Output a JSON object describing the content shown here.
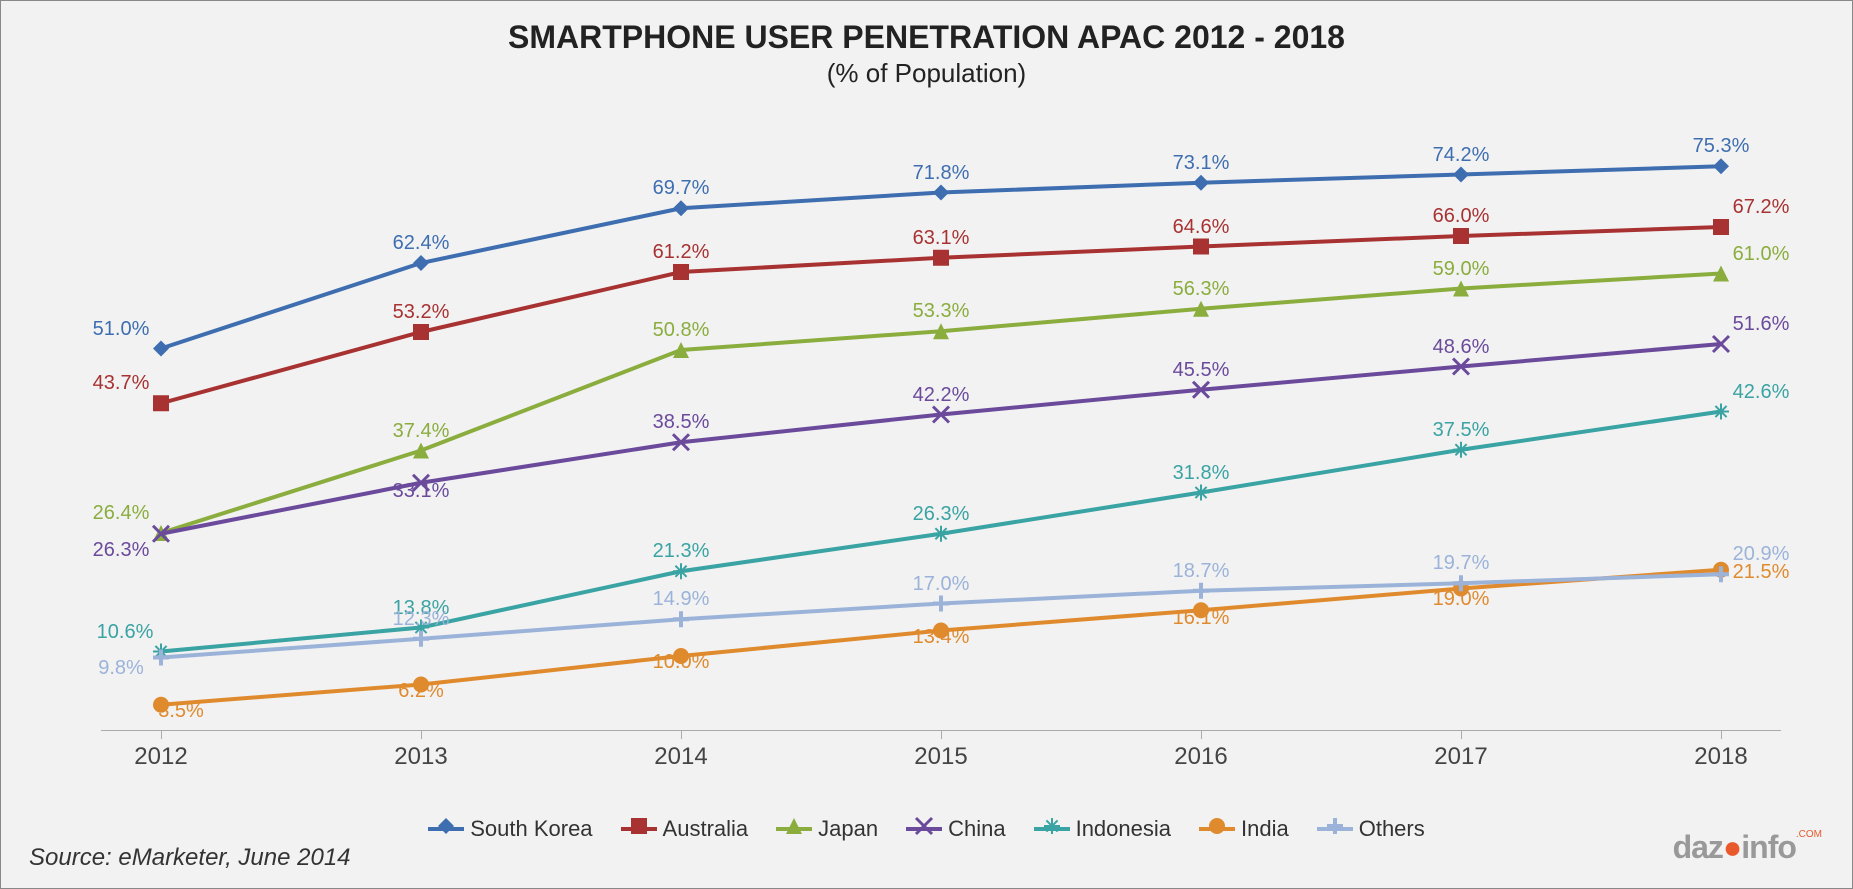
{
  "chart": {
    "title": "SMARTPHONE USER PENETRATION APAC 2012 - 2018",
    "subtitle": "(% of Population)",
    "title_fontsize": 32,
    "subtitle_fontsize": 26,
    "background_color": "#f2f2f2",
    "border_color": "#888888",
    "source": "Source: eMarketer, June 2014",
    "watermark": "dazoinfo",
    "type": "line",
    "years": [
      "2012",
      "2013",
      "2014",
      "2015",
      "2016",
      "2017",
      "2018"
    ],
    "ylim": [
      0,
      80
    ],
    "line_width": 4,
    "marker_size": 8,
    "series": [
      {
        "name": "South Korea",
        "color": "#3e6eb0",
        "marker": "diamond",
        "values": [
          51.0,
          62.4,
          69.7,
          71.8,
          73.1,
          74.2,
          75.3
        ],
        "labels": [
          "51.0%",
          "62.4%",
          "69.7%",
          "71.8%",
          "73.1%",
          "74.2%",
          "75.3%"
        ],
        "label_dx": [
          -40,
          0,
          0,
          0,
          0,
          0,
          0
        ],
        "label_dy": [
          -8,
          -8,
          -8,
          -8,
          -8,
          -8,
          -8
        ]
      },
      {
        "name": "Australia",
        "color": "#a83232",
        "marker": "square",
        "values": [
          43.7,
          53.2,
          61.2,
          63.1,
          64.6,
          66.0,
          67.2
        ],
        "labels": [
          "43.7%",
          "53.2%",
          "61.2%",
          "63.1%",
          "64.6%",
          "66.0%",
          "67.2%"
        ],
        "label_dx": [
          -40,
          0,
          0,
          0,
          0,
          0,
          40
        ],
        "label_dy": [
          -8,
          -8,
          -8,
          -8,
          -8,
          -8,
          -8
        ]
      },
      {
        "name": "Japan",
        "color": "#8aad3e",
        "marker": "triangle",
        "values": [
          26.4,
          37.4,
          50.8,
          53.3,
          56.3,
          59.0,
          61.0
        ],
        "labels": [
          "26.4%",
          "37.4%",
          "50.8%",
          "53.3%",
          "56.3%",
          "59.0%",
          "61.0%"
        ],
        "label_dx": [
          -40,
          0,
          0,
          0,
          0,
          0,
          40
        ],
        "label_dy": [
          -8,
          -8,
          -8,
          -8,
          -8,
          -8,
          -8
        ]
      },
      {
        "name": "China",
        "color": "#6b4a9c",
        "marker": "x",
        "values": [
          26.3,
          33.1,
          38.5,
          42.2,
          45.5,
          48.6,
          51.6
        ],
        "labels": [
          "26.3%",
          "33.1%",
          "38.5%",
          "42.2%",
          "45.5%",
          "48.6%",
          "51.6%"
        ],
        "label_dx": [
          -40,
          0,
          0,
          0,
          0,
          0,
          40
        ],
        "label_dy": [
          28,
          20,
          -8,
          -8,
          -8,
          -8,
          -8
        ]
      },
      {
        "name": "Indonesia",
        "color": "#3aa3a3",
        "marker": "star",
        "values": [
          10.6,
          13.8,
          21.3,
          26.3,
          31.8,
          37.5,
          42.6
        ],
        "labels": [
          "10.6%",
          "13.8%",
          "21.3%",
          "26.3%",
          "31.8%",
          "37.5%",
          "42.6%"
        ],
        "label_dx": [
          -36,
          0,
          0,
          0,
          0,
          0,
          40
        ],
        "label_dy": [
          -8,
          -8,
          -8,
          -8,
          -8,
          -8,
          -8
        ]
      },
      {
        "name": "India",
        "color": "#e08a2e",
        "marker": "circle",
        "values": [
          3.5,
          6.2,
          10.0,
          13.4,
          16.1,
          19.0,
          21.5
        ],
        "labels": [
          "3.5%",
          "6.2%",
          "10.0%",
          "13.4%",
          "16.1%",
          "19.0%",
          "21.5%"
        ],
        "label_dx": [
          20,
          0,
          0,
          0,
          0,
          0,
          40
        ],
        "label_dy": [
          18,
          18,
          18,
          18,
          20,
          22,
          14
        ]
      },
      {
        "name": "Others",
        "color": "#9bb3d9",
        "marker": "plus",
        "values": [
          9.8,
          12.3,
          14.9,
          17.0,
          18.7,
          19.7,
          20.9
        ],
        "labels": [
          "9.8%",
          "12.3%",
          "14.9%",
          "17.0%",
          "18.7%",
          "19.7%",
          "20.9%"
        ],
        "label_dx": [
          -40,
          0,
          0,
          0,
          0,
          0,
          40
        ],
        "label_dy": [
          22,
          -8,
          -8,
          -8,
          -8,
          -8,
          -8
        ]
      }
    ],
    "legend_position": "bottom",
    "axis_color": "#aaaaaa",
    "axis_label_fontsize": 24,
    "data_label_fontsize": 20
  }
}
